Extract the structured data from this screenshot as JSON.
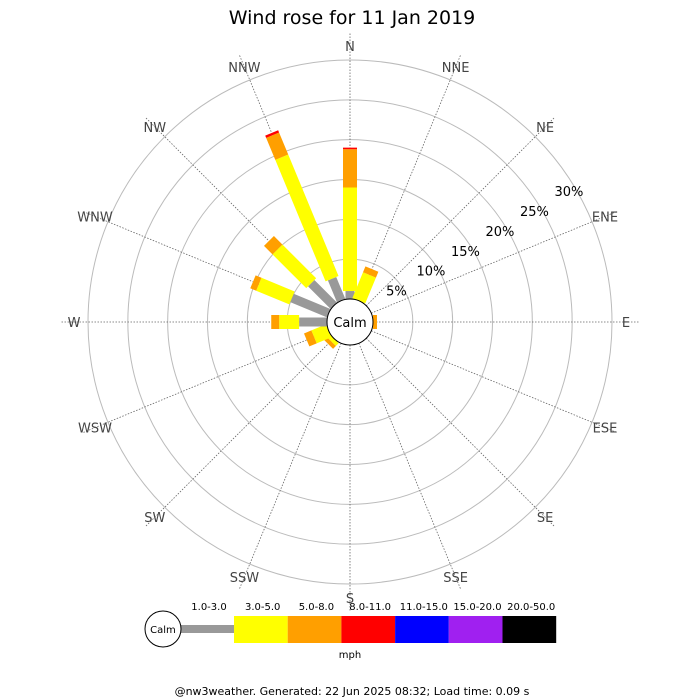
{
  "chart_data": {
    "type": "windrose",
    "title": "Wind rose for 11 Jan 2019",
    "directions": [
      "N",
      "NNE",
      "NE",
      "ENE",
      "E",
      "ESE",
      "SE",
      "SSE",
      "S",
      "SSW",
      "SW",
      "WSW",
      "W",
      "WNW",
      "NW",
      "NNW"
    ],
    "radial_ticks": [
      "5%",
      "10%",
      "15%",
      "20%",
      "25%",
      "30%"
    ],
    "radial_max": 30,
    "calm_label": "Calm",
    "unit": "mph",
    "bins": [
      {
        "label": "1.0-3.0",
        "color": "#999999"
      },
      {
        "label": "3.0-5.0",
        "color": "#ffff00"
      },
      {
        "label": "5.0-8.0",
        "color": "#ff9f00"
      },
      {
        "label": "8.0-11.0",
        "color": "#ff0000"
      },
      {
        "label": "11.0-15.0",
        "color": "#0000ff"
      },
      {
        "label": "15.0-20.0",
        "color": "#a020f0"
      },
      {
        "label": "20.0-50.0",
        "color": "#000000"
      }
    ],
    "series": [
      {
        "direction": "N",
        "values": [
          1.0,
          13.0,
          4.8,
          0.2,
          0,
          0,
          0
        ]
      },
      {
        "direction": "NNE",
        "values": [
          0,
          3.5,
          0.8,
          0,
          0,
          0,
          0
        ]
      },
      {
        "direction": "NE",
        "values": [
          0,
          0,
          0,
          0,
          0,
          0,
          0
        ]
      },
      {
        "direction": "ENE",
        "values": [
          0,
          0,
          0,
          0,
          0,
          0,
          0
        ]
      },
      {
        "direction": "E",
        "values": [
          0,
          0,
          0.5,
          0,
          0,
          0,
          0
        ]
      },
      {
        "direction": "ESE",
        "values": [
          0,
          0,
          0,
          0,
          0,
          0,
          0
        ]
      },
      {
        "direction": "SE",
        "values": [
          0,
          0,
          0,
          0,
          0,
          0,
          0
        ]
      },
      {
        "direction": "SSE",
        "values": [
          0,
          0,
          0,
          0,
          0,
          0,
          0
        ]
      },
      {
        "direction": "S",
        "values": [
          0,
          0,
          0,
          0,
          0,
          0,
          0
        ]
      },
      {
        "direction": "SSW",
        "values": [
          0,
          0,
          0,
          0,
          0,
          0,
          0
        ]
      },
      {
        "direction": "SW",
        "values": [
          0,
          0.5,
          0.5,
          0,
          0,
          0,
          0
        ]
      },
      {
        "direction": "WSW",
        "values": [
          0,
          2.0,
          1.0,
          0,
          0,
          0,
          0
        ]
      },
      {
        "direction": "W",
        "values": [
          3.5,
          2.5,
          1.0,
          0,
          0,
          0,
          0
        ]
      },
      {
        "direction": "WNW",
        "values": [
          5.0,
          4.5,
          0.8,
          0,
          0,
          0,
          0
        ]
      },
      {
        "direction": "NW",
        "values": [
          4.0,
          6.0,
          1.5,
          0,
          0,
          0,
          0
        ]
      },
      {
        "direction": "NNW",
        "values": [
          3.0,
          16.5,
          3.0,
          0.3,
          0,
          0,
          0
        ]
      }
    ]
  },
  "footer": "@nw3weather. Generated: 22 Jun 2025 08:32; Load time: 0.09 s"
}
